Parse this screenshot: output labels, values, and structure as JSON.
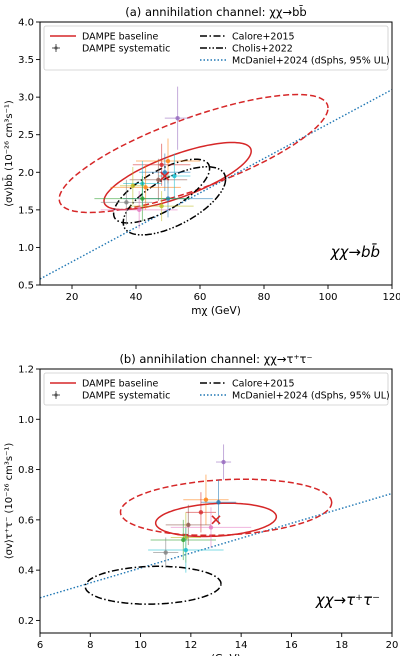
{
  "chart_data": [
    {
      "type": "scatter",
      "title": "(a) annihilation channel: χχ→bb̄",
      "xlabel": "mχ (GeV)",
      "ylabel": "⟨σv⟩bb̄ (10⁻²⁶ cm³s⁻¹)",
      "xlim": [
        10,
        120
      ],
      "ylim": [
        0.5,
        4.0
      ],
      "xticks": [
        "20",
        "40",
        "60",
        "80",
        "100",
        "120"
      ],
      "yticks": [
        "0.5",
        "1.0",
        "1.5",
        "2.0",
        "2.5",
        "3.0",
        "3.5",
        "4.0"
      ],
      "annotation": "χχ→bb̄",
      "legend_placement": "top",
      "legend": [
        {
          "label": "DAMPE baseline",
          "style": "solid-red"
        },
        {
          "label": "DAMPE systematic",
          "style": "errorbar"
        },
        {
          "label": "Calore+2015",
          "style": "dashdot"
        },
        {
          "label": "Cholis+2022",
          "style": "dashdotdot"
        },
        {
          "label": "McDaniel+2024 (dSphs, 95% UL)",
          "style": "dotted-blue"
        }
      ],
      "best_fit": {
        "x": 49,
        "y": 1.95
      },
      "contours": [
        {
          "name": "DAMPE baseline 1σ",
          "color": "#d62728",
          "dash": "solid",
          "cx": 53,
          "cy": 1.95,
          "a": 23,
          "b": 0.3,
          "tilt": 0.72
        },
        {
          "name": "DAMPE baseline 2σ",
          "color": "#d62728",
          "dash": "dashed",
          "cx": 58,
          "cy": 2.25,
          "a": 42,
          "b": 0.5,
          "tilt": 0.72
        },
        {
          "name": "Calore+2015",
          "color": "#000000",
          "dash": "dashdot",
          "cx": 48,
          "cy": 1.75,
          "a": 15,
          "b": 0.3,
          "tilt": 1.0
        },
        {
          "name": "Cholis+2022",
          "color": "#000000",
          "dash": "dashdotdot",
          "cx": 52,
          "cy": 1.62,
          "a": 16,
          "b": 0.35,
          "tilt": 0.9
        }
      ],
      "ul_line": {
        "color": "#1f77b4",
        "x": [
          10,
          120
        ],
        "y": [
          0.58,
          3.1
        ]
      },
      "systematic_points": [
        {
          "x": 53,
          "y": 2.72,
          "xerr": 4,
          "yerr": 0.42,
          "color": "#9467bd"
        },
        {
          "x": 50,
          "y": 2.15,
          "xerr": 10,
          "yerr": 0.3,
          "color": "#ff7f0e"
        },
        {
          "x": 48,
          "y": 2.1,
          "xerr": 9,
          "yerr": 0.28,
          "color": "#d62728"
        },
        {
          "x": 49,
          "y": 2.0,
          "xerr": 8,
          "yerr": 0.25,
          "color": "#1f77b4"
        },
        {
          "x": 47,
          "y": 1.9,
          "xerr": 9,
          "yerr": 0.28,
          "color": "#8c564b"
        },
        {
          "x": 42,
          "y": 1.85,
          "xerr": 6,
          "yerr": 0.3,
          "color": "#17becf"
        },
        {
          "x": 43,
          "y": 1.8,
          "xerr": 11,
          "yerr": 0.3,
          "color": "#ff7f0e"
        },
        {
          "x": 39,
          "y": 1.82,
          "xerr": 4,
          "yerr": 0.25,
          "color": "#bcbd22"
        },
        {
          "x": 50,
          "y": 1.65,
          "xerr": 14,
          "yerr": 0.25,
          "color": "#1f77b4"
        },
        {
          "x": 42,
          "y": 1.65,
          "xerr": 15,
          "yerr": 0.3,
          "color": "#2ca02c"
        },
        {
          "x": 48,
          "y": 1.55,
          "xerr": 10,
          "yerr": 0.2,
          "color": "#bcbd22"
        },
        {
          "x": 37,
          "y": 1.6,
          "xerr": 8,
          "yerr": 0.3,
          "color": "#7f7f7f"
        },
        {
          "x": 41,
          "y": 1.5,
          "xerr": 12,
          "yerr": 0.25,
          "color": "#e377c2"
        },
        {
          "x": 52,
          "y": 1.95,
          "xerr": 5,
          "yerr": 0.3,
          "color": "#17becf"
        }
      ]
    },
    {
      "type": "scatter",
      "title": "(b) annihilation channel: χχ→τ⁺τ⁻",
      "xlabel": "mχ (GeV)",
      "ylabel": "⟨σv⟩τ⁺τ⁻ (10⁻²⁶ cm³s⁻¹)",
      "xlim": [
        6,
        20
      ],
      "ylim": [
        0.15,
        1.2
      ],
      "xticks": [
        "6",
        "8",
        "10",
        "12",
        "14",
        "16",
        "18",
        "20"
      ],
      "yticks": [
        "0.2",
        "0.4",
        "0.6",
        "0.8",
        "1.0",
        "1.2"
      ],
      "annotation": "χχ→τ⁺τ⁻",
      "legend_placement": "top",
      "legend": [
        {
          "label": "DAMPE baseline",
          "style": "solid-red"
        },
        {
          "label": "DAMPE systematic",
          "style": "errorbar"
        },
        {
          "label": "Calore+2015",
          "style": "dashdot"
        },
        {
          "label": "McDaniel+2024 (dSphs, 95% UL)",
          "style": "dotted-blue"
        }
      ],
      "best_fit": {
        "x": 13,
        "y": 0.6
      },
      "contours": [
        {
          "name": "DAMPE baseline 1σ",
          "color": "#d62728",
          "dash": "solid",
          "cx": 13.0,
          "cy": 0.6,
          "a": 2.4,
          "b": 0.065,
          "tilt": 0.105
        },
        {
          "name": "DAMPE baseline 2σ",
          "color": "#d62728",
          "dash": "dashed",
          "cx": 13.4,
          "cy": 0.65,
          "a": 4.2,
          "b": 0.11,
          "tilt": 0.09
        },
        {
          "name": "Calore+2015",
          "color": "#000000",
          "dash": "dashdot",
          "cx": 10.5,
          "cy": 0.34,
          "a": 2.7,
          "b": 0.075,
          "tilt": 0.04
        }
      ],
      "ul_line": {
        "color": "#1f77b4",
        "x": [
          6,
          20
        ],
        "y": [
          0.29,
          0.705
        ]
      },
      "systematic_points": [
        {
          "x": 13.3,
          "y": 0.83,
          "xerr": 0.3,
          "yerr": 0.07,
          "color": "#9467bd"
        },
        {
          "x": 12.6,
          "y": 0.68,
          "xerr": 0.9,
          "yerr": 0.1,
          "color": "#ff7f0e"
        },
        {
          "x": 13.1,
          "y": 0.67,
          "xerr": 0.7,
          "yerr": 0.09,
          "color": "#1f77b4"
        },
        {
          "x": 12.4,
          "y": 0.63,
          "xerr": 0.6,
          "yerr": 0.08,
          "color": "#d62728"
        },
        {
          "x": 11.9,
          "y": 0.58,
          "xerr": 0.9,
          "yerr": 0.08,
          "color": "#8c564b"
        },
        {
          "x": 11.8,
          "y": 0.53,
          "xerr": 0.6,
          "yerr": 0.1,
          "color": "#bcbd22"
        },
        {
          "x": 11.7,
          "y": 0.52,
          "xerr": 1.3,
          "yerr": 0.08,
          "color": "#2ca02c"
        },
        {
          "x": 11.8,
          "y": 0.48,
          "xerr": 1.5,
          "yerr": 0.09,
          "color": "#17becf"
        },
        {
          "x": 12.8,
          "y": 0.57,
          "xerr": 1.6,
          "yerr": 0.08,
          "color": "#e377c2"
        },
        {
          "x": 11.0,
          "y": 0.47,
          "xerr": 0.5,
          "yerr": 0.06,
          "color": "#7f7f7f"
        }
      ]
    }
  ]
}
